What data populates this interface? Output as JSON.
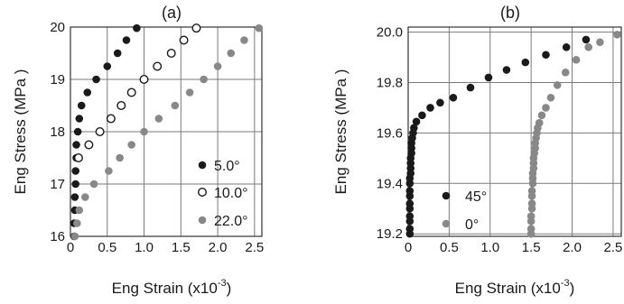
{
  "chart_data": [
    {
      "type": "scatter",
      "title": "(a)",
      "xlabel": "Eng Strain (x10",
      "xlabel_exp": "-3",
      "xlabel_end": ")",
      "ylabel": "Eng Stress (MPa )",
      "xlim": [
        0,
        2.6
      ],
      "ylim": [
        16,
        20
      ],
      "xticks": [
        0,
        0.5,
        1.0,
        1.5,
        2.0,
        2.5
      ],
      "xtick_labels": [
        "0",
        "0.5",
        "1.0",
        "1.5",
        "2.0",
        "2.5"
      ],
      "yticks": [
        16,
        17,
        18,
        19,
        20
      ],
      "ytick_labels": [
        "16",
        "17",
        "18",
        "19",
        "20"
      ],
      "grid": true,
      "legend_position": "bottom-right",
      "series": [
        {
          "name": "5.0°",
          "color": "#1a1a1a",
          "marker": "filled",
          "x": [
            0.05,
            0.05,
            0.06,
            0.06,
            0.07,
            0.07,
            0.08,
            0.08,
            0.1,
            0.12,
            0.15,
            0.23,
            0.35,
            0.5,
            0.64,
            0.76,
            0.9
          ],
          "y": [
            16.0,
            16.25,
            16.5,
            16.75,
            17.0,
            17.25,
            17.5,
            17.75,
            18.0,
            18.25,
            18.5,
            18.75,
            19.0,
            19.25,
            19.5,
            19.75,
            19.98
          ]
        },
        {
          "name": "10.0°",
          "color": "#1a1a1a",
          "marker": "open",
          "x": [
            0.11,
            0.25,
            0.4,
            0.55,
            0.69,
            0.83,
            1.0,
            1.18,
            1.37,
            1.54,
            1.71
          ],
          "y": [
            17.5,
            17.75,
            18.0,
            18.25,
            18.5,
            18.75,
            19.0,
            19.25,
            19.5,
            19.75,
            19.98
          ]
        },
        {
          "name": "22.0°",
          "color": "#888888",
          "marker": "filled",
          "x": [
            0.06,
            0.09,
            0.12,
            0.2,
            0.32,
            0.52,
            0.67,
            0.83,
            1.0,
            1.2,
            1.42,
            1.62,
            1.81,
            2.0,
            2.18,
            2.36,
            2.56
          ],
          "y": [
            16.0,
            16.25,
            16.5,
            16.75,
            17.0,
            17.25,
            17.5,
            17.75,
            18.0,
            18.25,
            18.5,
            18.75,
            19.0,
            19.25,
            19.5,
            19.75,
            19.98
          ]
        }
      ]
    },
    {
      "type": "scatter",
      "title": "(b)",
      "xlabel": "Eng Strain (x10",
      "xlabel_exp": "-3",
      "xlabel_end": ")",
      "ylabel": "Eng Stress (MPa )",
      "xlim": [
        0,
        2.6
      ],
      "ylim": [
        19.19,
        20.02
      ],
      "xticks": [
        0,
        0.5,
        1.0,
        1.5,
        2.0,
        2.5
      ],
      "xtick_labels": [
        "0",
        "0.5",
        "1.0",
        "1.5",
        "2.0",
        "2.5"
      ],
      "yticks": [
        19.2,
        19.4,
        19.6,
        19.8,
        20.0
      ],
      "ytick_labels": [
        "19.2",
        "19.4",
        "19.6",
        "19.8",
        "20.0"
      ],
      "grid": true,
      "legend_position": "bottom-center",
      "series": [
        {
          "name": "45°",
          "color": "#1a1a1a",
          "marker": "filled",
          "x": [
            0.02,
            0.02,
            0.02,
            0.02,
            0.02,
            0.02,
            0.02,
            0.02,
            0.02,
            0.02,
            0.03,
            0.03,
            0.03,
            0.03,
            0.04,
            0.04,
            0.04,
            0.05,
            0.06,
            0.07,
            0.1,
            0.17,
            0.27,
            0.39,
            0.55,
            0.76,
            0.98,
            1.2,
            1.43,
            1.68,
            1.93,
            2.17
          ],
          "y": [
            19.2,
            19.22,
            19.25,
            19.27,
            19.3,
            19.32,
            19.35,
            19.37,
            19.4,
            19.42,
            19.44,
            19.46,
            19.48,
            19.5,
            19.52,
            19.54,
            19.56,
            19.58,
            19.6,
            19.62,
            19.645,
            19.67,
            19.7,
            19.72,
            19.74,
            19.78,
            19.82,
            19.85,
            19.88,
            19.91,
            19.94,
            19.97
          ]
        },
        {
          "name": "0°",
          "color": "#888888",
          "marker": "filled",
          "x": [
            1.5,
            1.5,
            1.5,
            1.5,
            1.51,
            1.51,
            1.51,
            1.51,
            1.52,
            1.52,
            1.52,
            1.53,
            1.53,
            1.53,
            1.54,
            1.55,
            1.55,
            1.56,
            1.57,
            1.58,
            1.6,
            1.63,
            1.68,
            1.74,
            1.82,
            1.92,
            2.05,
            2.2,
            2.34,
            2.55
          ],
          "y": [
            19.2,
            19.22,
            19.25,
            19.27,
            19.3,
            19.32,
            19.35,
            19.37,
            19.4,
            19.42,
            19.44,
            19.46,
            19.48,
            19.5,
            19.52,
            19.54,
            19.56,
            19.58,
            19.6,
            19.62,
            19.64,
            19.67,
            19.7,
            19.74,
            19.79,
            19.84,
            19.89,
            19.94,
            19.96,
            19.99
          ]
        }
      ]
    }
  ]
}
